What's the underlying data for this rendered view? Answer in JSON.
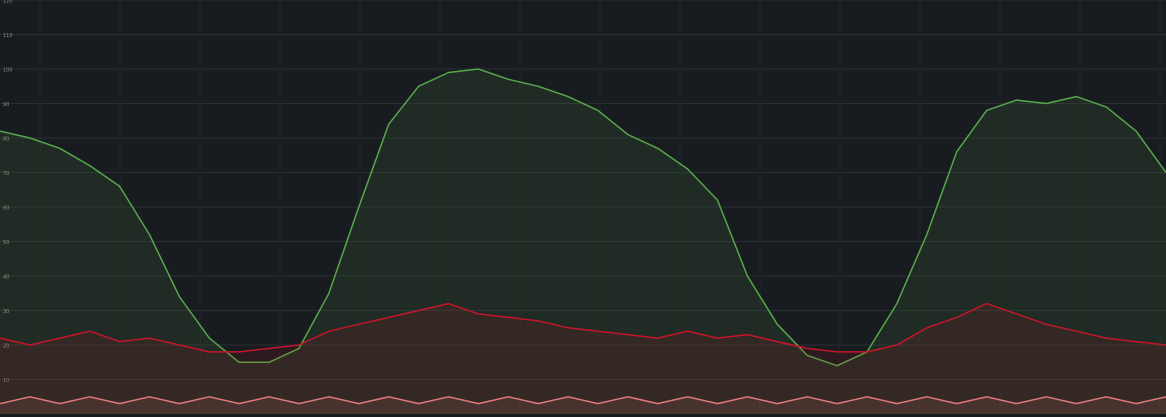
{
  "chart_data": {
    "type": "line",
    "ylim": [
      0,
      120
    ],
    "yticks": [
      10,
      20,
      30,
      40,
      50,
      60,
      70,
      80,
      90,
      100,
      110,
      120
    ],
    "grid": true,
    "series": [
      {
        "color": "#56a64b",
        "values": [
          82,
          80,
          77,
          72,
          66,
          52,
          34,
          22,
          15,
          15,
          19,
          35,
          60,
          84,
          95,
          99,
          100,
          97,
          95,
          92,
          88,
          81,
          77,
          71,
          62,
          40,
          26,
          17,
          14,
          18,
          32,
          52,
          76,
          88,
          91,
          90,
          92,
          89,
          82,
          70
        ]
      },
      {
        "color": "#c4162a",
        "values": [
          22,
          20,
          22,
          24,
          21,
          22,
          20,
          18,
          18,
          19,
          20,
          24,
          26,
          28,
          30,
          32,
          29,
          28,
          27,
          25,
          24,
          23,
          22,
          24,
          22,
          23,
          21,
          19,
          18,
          18,
          20,
          25,
          28,
          32,
          29,
          26,
          24,
          22,
          21,
          20
        ]
      },
      {
        "color": "#e07a7a",
        "values": [
          3,
          5,
          3,
          5,
          3,
          5,
          3,
          5,
          3,
          5,
          3,
          5,
          3,
          5,
          3,
          5,
          3,
          5,
          3,
          5,
          3,
          5,
          3,
          5,
          3,
          5,
          3,
          5,
          3,
          5,
          3,
          5,
          3,
          5,
          3,
          5,
          3,
          5,
          3,
          5
        ]
      }
    ]
  }
}
